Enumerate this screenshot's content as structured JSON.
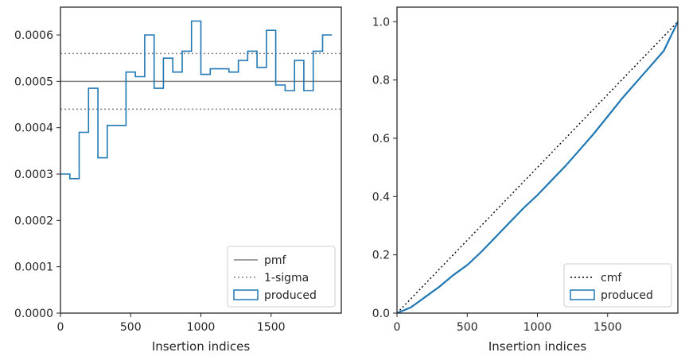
{
  "chart_data": [
    {
      "type": "histogram-step",
      "xlabel": "Insertion indices",
      "ylabel": "",
      "xlim": [
        0,
        2000
      ],
      "ylim": [
        0,
        0.00066
      ],
      "xticks": [
        0,
        500,
        1000,
        1500
      ],
      "yticks": [
        0.0,
        0.0001,
        0.0002,
        0.0003,
        0.0004,
        0.0005,
        0.0006
      ],
      "ytick_labels": [
        "0.0000",
        "0.0001",
        "0.0002",
        "0.0003",
        "0.0004",
        "0.0005",
        "0.0006"
      ],
      "bin_width": 66.67,
      "series": [
        {
          "name": "produced",
          "color": "#1f77b4",
          "values": [
            0.0003,
            0.00029,
            0.00039,
            0.000485,
            0.000335,
            0.000405,
            0.000405,
            0.00052,
            0.00051,
            0.0006,
            0.000485,
            0.00055,
            0.00052,
            0.000565,
            0.00063,
            0.000515,
            0.000527,
            0.000527,
            0.00052,
            0.000545,
            0.000565,
            0.00053,
            0.00061,
            0.000492,
            0.00048,
            0.000545,
            0.00048,
            0.000565,
            0.0006
          ]
        }
      ],
      "reference_lines": [
        {
          "name": "pmf",
          "y": 0.0005,
          "color": "#808080",
          "style": "solid"
        },
        {
          "name": "1-sigma",
          "y": 0.00056,
          "color": "#808080",
          "style": "dotted"
        },
        {
          "name": "1-sigma",
          "y": 0.00044,
          "color": "#808080",
          "style": "dotted"
        }
      ],
      "legend": {
        "position": "lower-right",
        "entries": [
          {
            "label": "pmf",
            "kind": "solid-line",
            "color": "#808080"
          },
          {
            "label": "1-sigma",
            "kind": "dotted-line",
            "color": "#808080"
          },
          {
            "label": "produced",
            "kind": "patch",
            "color": "#1f77b4"
          }
        ]
      }
    },
    {
      "type": "line",
      "xlabel": "Insertion indices",
      "ylabel": "",
      "xlim": [
        0,
        2000
      ],
      "ylim": [
        0,
        1.05
      ],
      "xticks": [
        0,
        500,
        1000,
        1500
      ],
      "yticks": [
        0.0,
        0.2,
        0.4,
        0.6,
        0.8,
        1.0
      ],
      "ytick_labels": [
        "0.0",
        "0.2",
        "0.4",
        "0.6",
        "0.8",
        "1.0"
      ],
      "series": [
        {
          "name": "cmf",
          "color": "#000000",
          "style": "dotted",
          "x": [
            0,
            2000
          ],
          "y": [
            0,
            1.0
          ]
        },
        {
          "name": "produced",
          "color": "#1f77b4",
          "style": "solid",
          "x": [
            0,
            100,
            200,
            300,
            400,
            500,
            600,
            700,
            800,
            900,
            1000,
            1100,
            1200,
            1300,
            1400,
            1500,
            1600,
            1700,
            1800,
            1900,
            2000
          ],
          "y": [
            0,
            0.02,
            0.055,
            0.09,
            0.13,
            0.165,
            0.21,
            0.26,
            0.31,
            0.36,
            0.405,
            0.455,
            0.505,
            0.56,
            0.615,
            0.675,
            0.735,
            0.79,
            0.845,
            0.9,
            1.0
          ]
        }
      ],
      "legend": {
        "position": "lower-right",
        "entries": [
          {
            "label": "cmf",
            "kind": "dotted-line",
            "color": "#000000"
          },
          {
            "label": "produced",
            "kind": "patch",
            "color": "#1f77b4"
          }
        ]
      }
    }
  ]
}
